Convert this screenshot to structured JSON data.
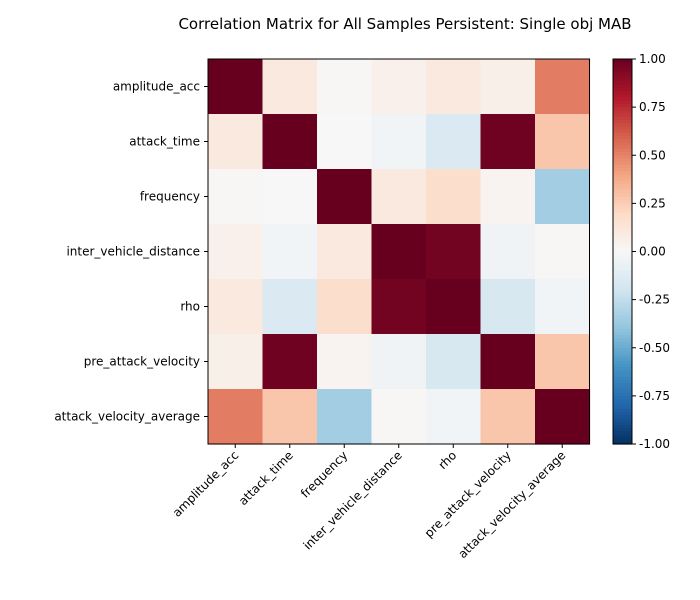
{
  "chart_data": {
    "type": "heatmap",
    "title": "Correlation Matrix for All Samples Persistent: Single obj MAB",
    "row_labels": [
      "amplitude_acc",
      "attack_time",
      "frequency",
      "inter_vehicle_distance",
      "rho",
      "pre_attack_velocity",
      "attack_velocity_average"
    ],
    "col_labels": [
      "amplitude_acc",
      "attack_time",
      "frequency",
      "inter_vehicle_distance",
      "rho",
      "pre_attack_velocity",
      "attack_velocity_average"
    ],
    "values": [
      [
        1.0,
        0.1,
        0.01,
        0.05,
        0.1,
        0.06,
        0.52
      ],
      [
        0.1,
        1.0,
        0.0,
        -0.03,
        -0.15,
        0.98,
        0.28
      ],
      [
        0.01,
        0.0,
        1.0,
        0.1,
        0.18,
        0.03,
        -0.35
      ],
      [
        0.05,
        -0.03,
        0.1,
        1.0,
        0.97,
        -0.04,
        0.01
      ],
      [
        0.1,
        -0.15,
        0.18,
        0.97,
        1.0,
        -0.17,
        -0.03
      ],
      [
        0.06,
        0.98,
        0.03,
        -0.04,
        -0.17,
        1.0,
        0.28
      ],
      [
        0.52,
        0.28,
        -0.35,
        0.01,
        -0.03,
        0.28,
        1.0
      ]
    ],
    "colormap": "RdBu_r",
    "vmin": -1.0,
    "vmax": 1.0,
    "colorbar_ticks": [
      "1.00",
      "0.75",
      "0.50",
      "0.25",
      "0.00",
      "-0.25",
      "-0.50",
      "-0.75",
      "-1.00"
    ],
    "grid": false,
    "legend": "colorbar-right"
  }
}
